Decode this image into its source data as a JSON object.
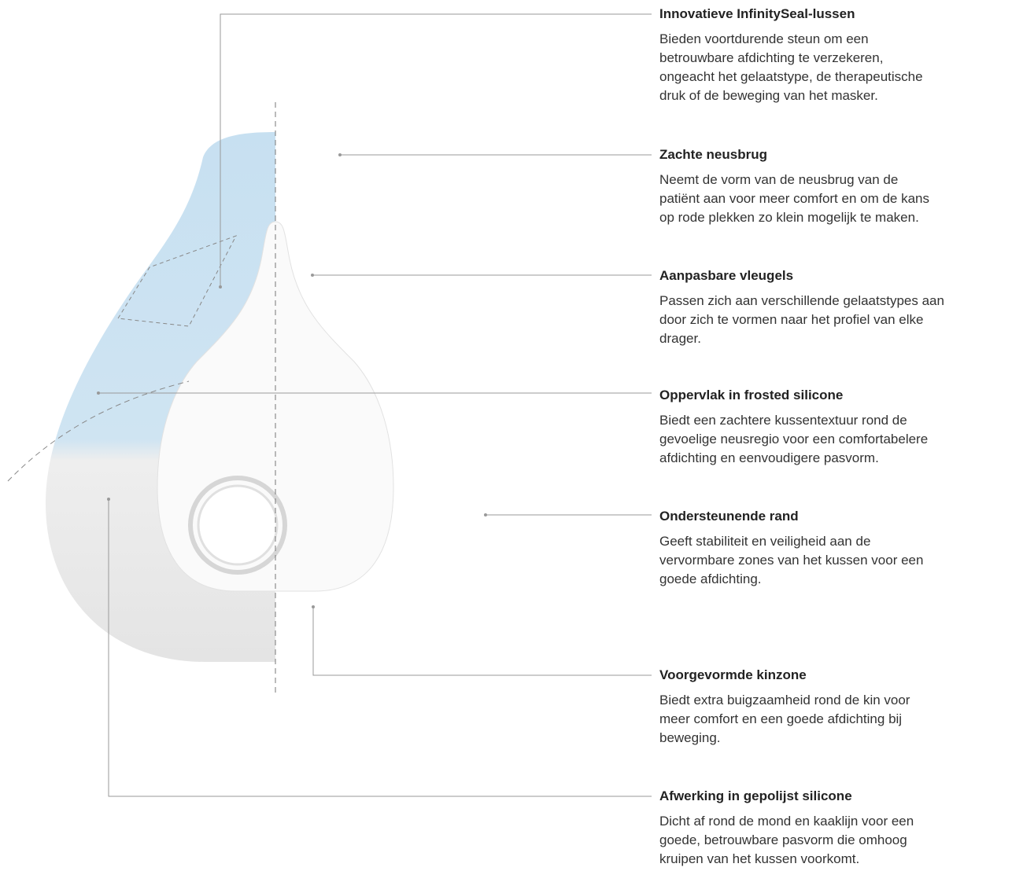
{
  "features": [
    {
      "title": "Innovatieve InfinitySeal-lussen",
      "lines": [
        "Bieden voortdurende steun om een",
        "betrouwbare afdichting te verzekeren,",
        "ongeacht het gelaatstype, de therapeutische",
        "druk of de beweging van het masker."
      ]
    },
    {
      "title": "Zachte neusbrug",
      "lines": [
        "Neemt de vorm van de neusbrug van de",
        "patiënt aan voor meer comfort en om de kans",
        "op rode plekken zo klein mogelijk te maken."
      ]
    },
    {
      "title": "Aanpasbare vleugels",
      "lines": [
        "Passen zich aan verschillende gelaatstypes aan",
        "door zich te vormen naar het profiel van elke",
        "drager."
      ]
    },
    {
      "title": "Oppervlak in frosted silicone",
      "lines": [
        "Biedt een zachtere kussentextuur rond de",
        "gevoelige neusregio voor een comfortabelere",
        "afdichting en eenvoudigere pasvorm."
      ]
    },
    {
      "title": "Ondersteunende rand",
      "lines": [
        "Geeft stabiliteit en veiligheid aan de",
        "vervormbare zones van het kussen voor een",
        "goede afdichting."
      ]
    },
    {
      "title": "Voorgevormde kinzone",
      "lines": [
        "Biedt extra buigzaamheid rond de kin voor",
        "meer comfort en een goede afdichting bij",
        "beweging."
      ]
    },
    {
      "title": "Afwerking in gepolijst silicone",
      "lines": [
        "Dicht af rond de mond en kaaklijn voor een",
        "goede, betrouwbare pasvorm die omhoog",
        "kruipen van het kussen voorkomt."
      ]
    }
  ]
}
